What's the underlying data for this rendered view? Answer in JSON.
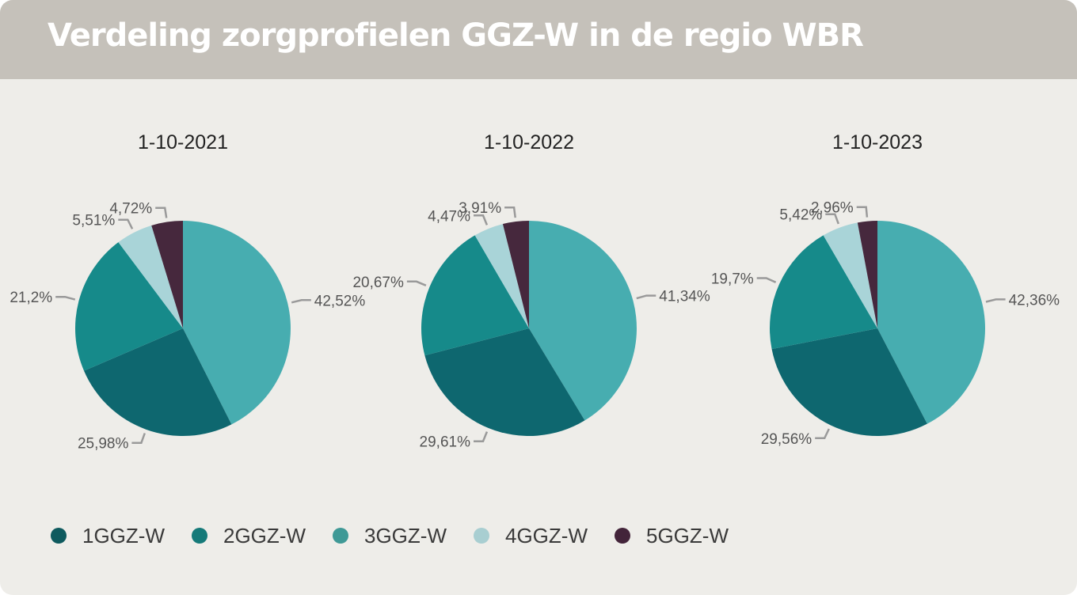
{
  "header": {
    "title": "Verdeling zorgprofielen GGZ-W in de regio WBR"
  },
  "colors": {
    "1GGZ-W": "#0e676f",
    "2GGZ-W": "#168a8a",
    "3GGZ-W": "#47adb0",
    "4GGZ-W": "#a9d4d8",
    "5GGZ-W": "#46283d"
  },
  "legend": {
    "items": [
      {
        "label": "1GGZ-W",
        "color": "#0e5a5e"
      },
      {
        "label": "2GGZ-W",
        "color": "#157a79"
      },
      {
        "label": "3GGZ-W",
        "color": "#3f9996"
      },
      {
        "label": "4GGZ-W",
        "color": "#a8ced1"
      },
      {
        "label": "5GGZ-W",
        "color": "#43243a"
      }
    ]
  },
  "chart_data": [
    {
      "type": "pie",
      "title": "1-10-2021",
      "slices": [
        {
          "name": "3GGZ-W",
          "value": 42.52,
          "label": "42,52%"
        },
        {
          "name": "1GGZ-W",
          "value": 25.98,
          "label": "25,98%"
        },
        {
          "name": "2GGZ-W",
          "value": 21.2,
          "label": "21,2%"
        },
        {
          "name": "4GGZ-W",
          "value": 5.51,
          "label": "5,51%"
        },
        {
          "name": "5GGZ-W",
          "value": 4.72,
          "label": "4,72%"
        }
      ]
    },
    {
      "type": "pie",
      "title": "1-10-2022",
      "slices": [
        {
          "name": "3GGZ-W",
          "value": 41.34,
          "label": "41,34%"
        },
        {
          "name": "1GGZ-W",
          "value": 29.61,
          "label": "29,61%"
        },
        {
          "name": "2GGZ-W",
          "value": 20.67,
          "label": "20,67%"
        },
        {
          "name": "4GGZ-W",
          "value": 4.47,
          "label": "4,47%"
        },
        {
          "name": "5GGZ-W",
          "value": 3.91,
          "label": "3,91%"
        }
      ]
    },
    {
      "type": "pie",
      "title": "1-10-2023",
      "slices": [
        {
          "name": "3GGZ-W",
          "value": 42.36,
          "label": "42,36%"
        },
        {
          "name": "1GGZ-W",
          "value": 29.56,
          "label": "29,56%"
        },
        {
          "name": "2GGZ-W",
          "value": 19.7,
          "label": "19,7%"
        },
        {
          "name": "4GGZ-W",
          "value": 5.42,
          "label": "5,42%"
        },
        {
          "name": "5GGZ-W",
          "value": 2.96,
          "label": "2,96%"
        }
      ]
    }
  ]
}
